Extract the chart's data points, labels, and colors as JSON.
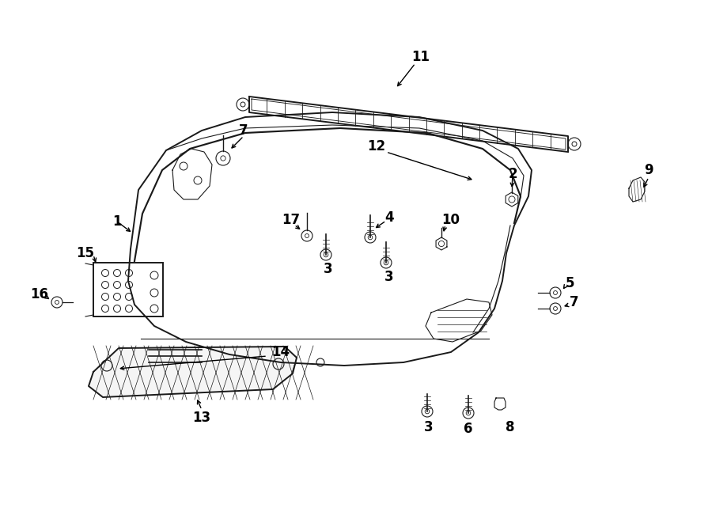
{
  "bg_color": "#ffffff",
  "line_color": "#1a1a1a",
  "figsize": [
    9.0,
    6.61
  ],
  "dpi": 100,
  "title_fontsize": 10,
  "label_fontsize": 11
}
